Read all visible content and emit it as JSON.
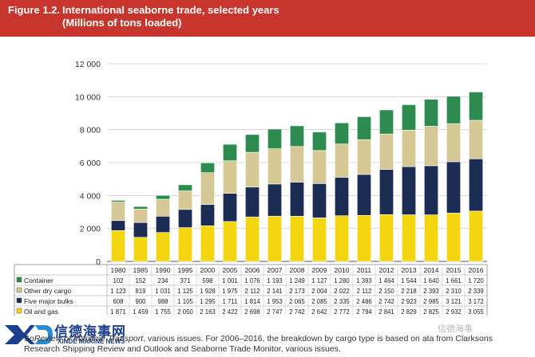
{
  "header": {
    "figure_label": "Figure 1.2.",
    "title_line1": "International seaborne trade, selected years",
    "title_line2": "(Millions of tons loaded)"
  },
  "chart_data": {
    "type": "bar",
    "stacked": true,
    "title": "International seaborne trade, selected years",
    "subtitle": "(Millions of tons loaded)",
    "xlabel": "",
    "ylabel": "",
    "ylim": [
      0,
      12000
    ],
    "yticks": [
      0,
      2000,
      4000,
      6000,
      8000,
      10000,
      12000
    ],
    "ytick_labels": [
      "0",
      "2 000",
      "4 000",
      "6 000",
      "8 000",
      "10 000",
      "12 000"
    ],
    "grid": true,
    "legend_placement": "table-below",
    "categories": [
      "1980",
      "1985",
      "1990",
      "1995",
      "2000",
      "2005",
      "2006",
      "2007",
      "2008",
      "2009",
      "2010",
      "2011",
      "2012",
      "2013",
      "2014",
      "2015",
      "2016"
    ],
    "series": [
      {
        "name": "Oil and gas",
        "color": "#f2d50f",
        "values": [
          1871,
          1459,
          1755,
          2050,
          2163,
          2422,
          2698,
          2747,
          2742,
          2642,
          2772,
          2794,
          2841,
          2829,
          2825,
          2932,
          3055
        ],
        "labels": [
          "1 871",
          "1 459",
          "1 755",
          "2 050",
          "2 163",
          "2 422",
          "2 698",
          "2 747",
          "2 742",
          "2 642",
          "2 772",
          "2 794",
          "2 841",
          "2 829",
          "2 825",
          "2 932",
          "3 055"
        ]
      },
      {
        "name": "Five major bulks",
        "color": "#1b2d52",
        "values": [
          608,
          900,
          988,
          1105,
          1295,
          1711,
          1814,
          1953,
          2065,
          2085,
          2335,
          2486,
          2742,
          2923,
          2985,
          3121,
          3172
        ],
        "labels": [
          "608",
          "900",
          "988",
          "1 105",
          "1 295",
          "1 711",
          "1 814",
          "1 953",
          "2 065",
          "2 085",
          "2 335",
          "2 486",
          "2 742",
          "2 923",
          "2 985",
          "3 121",
          "3 172"
        ]
      },
      {
        "name": "Other dry cargo",
        "color": "#d6c894",
        "values": [
          1123,
          819,
          1031,
          1125,
          1928,
          1975,
          2112,
          2141,
          2173,
          2004,
          2022,
          2112,
          2150,
          2218,
          2393,
          2310,
          2339
        ],
        "labels": [
          "1 123",
          "819",
          "1 031",
          "1 125",
          "1 928",
          "1 975",
          "2 112",
          "2 141",
          "2 173",
          "2 004",
          "2 022",
          "2 112",
          "2 150",
          "2 218",
          "2 393",
          "2 310",
          "2 339"
        ]
      },
      {
        "name": "Container",
        "color": "#2e8b4f",
        "values": [
          102,
          152,
          234,
          371,
          598,
          1001,
          1076,
          1193,
          1249,
          1127,
          1280,
          1393,
          1464,
          1544,
          1640,
          1661,
          1720
        ],
        "labels": [
          "102",
          "152",
          "234",
          "371",
          "598",
          "1 001",
          "1 076",
          "1 193",
          "1 249",
          "1 127",
          "1 280",
          "1 393",
          "1 464",
          "1 544",
          "1 640",
          "1 661",
          "1 720"
        ]
      }
    ],
    "table_row_order": [
      "Container",
      "Other dry cargo",
      "Five major bulks",
      "Oil and gas"
    ]
  },
  "source": {
    "line1_prefix": "So",
    "line1_italic": "Review of Maritime Transport",
    "line1_rest": ", various issues. For 2006–2016, the breakdown by cargo type is based on",
    "line1_tail": "ata from Clarksons",
    "line2": "Research Shipping Review and Outlook and Seaborne Trade Monitor, various issues."
  },
  "watermark": {
    "logo_cn": "信德海事网",
    "logo_en": "XINDE MARINE NEWS",
    "wechat": "信德海事"
  },
  "colors": {
    "header": "#c8352d",
    "oil_gas": "#f2d50f",
    "five_major_bulks": "#1b2d52",
    "other_dry_cargo": "#d6c894",
    "container": "#2e8b4f"
  }
}
